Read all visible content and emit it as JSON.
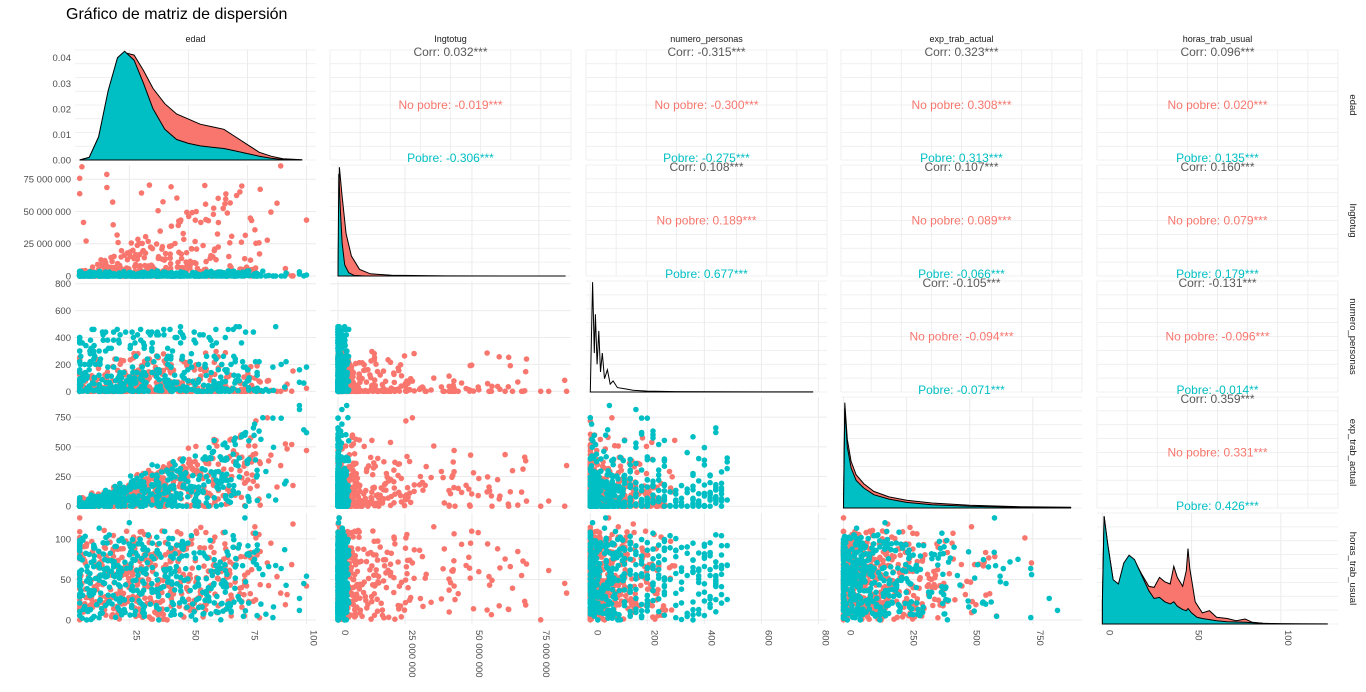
{
  "chart_data": {
    "type": "scatter-matrix",
    "title": "Gráfico de matriz de dispersión",
    "variables": [
      "edad",
      "Ingtotug",
      "numero_personas",
      "exp_trab_actual",
      "horas_trab_usual"
    ],
    "groups": [
      {
        "name": "No pobre",
        "color": "#F8766D"
      },
      {
        "name": "Pobre",
        "color": "#00BFC4"
      }
    ],
    "correlations": [
      {
        "row": 0,
        "col": 1,
        "corr": "Corr: 0.032***",
        "no_pobre": "No pobre: -0.019***",
        "pobre": "Pobre: -0.306***"
      },
      {
        "row": 0,
        "col": 2,
        "corr": "Corr: -0.315***",
        "no_pobre": "No pobre: -0.300***",
        "pobre": "Pobre: -0.275***"
      },
      {
        "row": 0,
        "col": 3,
        "corr": "Corr: 0.323***",
        "no_pobre": "No pobre: 0.308***",
        "pobre": "Pobre: 0.313***"
      },
      {
        "row": 0,
        "col": 4,
        "corr": "Corr: 0.096***",
        "no_pobre": "No pobre: 0.020***",
        "pobre": "Pobre: 0.135***"
      },
      {
        "row": 1,
        "col": 2,
        "corr": "Corr: 0.108***",
        "no_pobre": "No pobre: 0.189***",
        "pobre": "Pobre: 0.677***"
      },
      {
        "row": 1,
        "col": 3,
        "corr": "Corr: 0.107***",
        "no_pobre": "No pobre: 0.089***",
        "pobre": "Pobre: -0.066***"
      },
      {
        "row": 1,
        "col": 4,
        "corr": "Corr: 0.160***",
        "no_pobre": "No pobre: 0.079***",
        "pobre": "Pobre: 0.179***"
      },
      {
        "row": 2,
        "col": 3,
        "corr": "Corr: -0.105***",
        "no_pobre": "No pobre: -0.094***",
        "pobre": "Pobre: -0.071***"
      },
      {
        "row": 2,
        "col": 4,
        "corr": "Corr: -0.131***",
        "no_pobre": "No pobre: -0.096***",
        "pobre": "Pobre: -0.014**"
      },
      {
        "row": 3,
        "col": 4,
        "corr": "Corr: 0.359***",
        "no_pobre": "No pobre: 0.331***",
        "pobre": "Pobre: 0.426***"
      }
    ],
    "y_axes": [
      {
        "ticks": [
          "0.00",
          "0.01",
          "0.02",
          "0.03",
          "0.04"
        ],
        "values": [
          0,
          0.01,
          0.02,
          0.03,
          0.04
        ],
        "ylim": [
          0,
          0.043
        ]
      },
      {
        "ticks": [
          "0",
          "25 000 000",
          "50 000 000",
          "75 000 000"
        ],
        "values": [
          0,
          25000000,
          50000000,
          75000000
        ],
        "ylim": [
          0,
          86000000
        ]
      },
      {
        "ticks": [
          "0",
          "200",
          "400",
          "600",
          "800"
        ],
        "values": [
          0,
          200,
          400,
          600,
          800
        ],
        "ylim": [
          -5,
          820
        ]
      },
      {
        "ticks": [
          "0",
          "250",
          "500",
          "750"
        ],
        "values": [
          0,
          250,
          500,
          750
        ],
        "ylim": [
          -15,
          920
        ]
      },
      {
        "ticks": [
          "0",
          "50",
          "100"
        ],
        "values": [
          0,
          50,
          100
        ],
        "ylim": [
          -5,
          132
        ]
      }
    ],
    "x_axes": [
      {
        "ticks": [
          "25",
          "50",
          "75",
          "100"
        ],
        "values": [
          25,
          50,
          75,
          100
        ],
        "xlim": [
          2,
          104
        ]
      },
      {
        "ticks": [
          "0",
          "25 000 000",
          "50 000 000",
          "75 000 000"
        ],
        "values": [
          0,
          25000000,
          50000000,
          75000000
        ],
        "xlim": [
          -3000000,
          87000000
        ]
      },
      {
        "ticks": [
          "0",
          "200",
          "400",
          "600",
          "800"
        ],
        "values": [
          0,
          200,
          400,
          600,
          800
        ],
        "xlim": [
          -15,
          830
        ]
      },
      {
        "ticks": [
          "0",
          "250",
          "500",
          "750"
        ],
        "values": [
          0,
          250,
          500,
          750
        ],
        "xlim": [
          -10,
          945
        ]
      },
      {
        "ticks": [
          "0",
          "50",
          "100"
        ],
        "values": [
          0,
          50,
          100
        ],
        "xlim": [
          -3,
          132
        ]
      }
    ],
    "densities": [
      {
        "var": "edad",
        "no_pobre": [
          [
            4,
            0
          ],
          [
            8,
            0.001
          ],
          [
            12,
            0.009
          ],
          [
            16,
            0.026
          ],
          [
            20,
            0.038
          ],
          [
            23,
            0.042
          ],
          [
            27,
            0.041
          ],
          [
            31,
            0.035
          ],
          [
            35,
            0.028
          ],
          [
            40,
            0.022
          ],
          [
            45,
            0.018
          ],
          [
            50,
            0.016
          ],
          [
            55,
            0.014
          ],
          [
            60,
            0.013
          ],
          [
            65,
            0.012
          ],
          [
            70,
            0.009
          ],
          [
            75,
            0.006
          ],
          [
            80,
            0.003
          ],
          [
            85,
            0.0015
          ],
          [
            90,
            0.0005
          ],
          [
            98,
            0.0001
          ]
        ],
        "pobre": [
          [
            4,
            0
          ],
          [
            8,
            0.001
          ],
          [
            12,
            0.009
          ],
          [
            16,
            0.027
          ],
          [
            20,
            0.04
          ],
          [
            23,
            0.0425
          ],
          [
            27,
            0.039
          ],
          [
            31,
            0.03
          ],
          [
            35,
            0.02
          ],
          [
            40,
            0.012
          ],
          [
            45,
            0.008
          ],
          [
            50,
            0.0065
          ],
          [
            55,
            0.0055
          ],
          [
            60,
            0.005
          ],
          [
            65,
            0.0045
          ],
          [
            70,
            0.0035
          ],
          [
            75,
            0.0025
          ],
          [
            80,
            0.0015
          ],
          [
            85,
            0.0007
          ],
          [
            90,
            0.0002
          ],
          [
            98,
            0
          ]
        ]
      },
      {
        "var": "Ingtotug",
        "no_pobre": [
          [
            0,
            0
          ],
          [
            500000,
            0.98
          ],
          [
            1500000,
            0.72
          ],
          [
            3000000,
            0.38
          ],
          [
            5000000,
            0.18
          ],
          [
            8000000,
            0.06
          ],
          [
            12000000,
            0.02
          ],
          [
            20000000,
            0.006
          ],
          [
            40000000,
            0.001
          ],
          [
            85000000,
            0
          ]
        ],
        "pobre": [
          [
            0,
            0
          ],
          [
            300000,
            0.92
          ],
          [
            800000,
            0.62
          ],
          [
            1500000,
            0.3
          ],
          [
            2500000,
            0.1
          ],
          [
            4000000,
            0.03
          ],
          [
            6000000,
            0.005
          ],
          [
            10000000,
            0
          ]
        ]
      },
      {
        "var": "numero_personas",
        "overall": [
          [
            0,
            0
          ],
          [
            8,
            0.99
          ],
          [
            14,
            0.35
          ],
          [
            18,
            0.7
          ],
          [
            24,
            0.25
          ],
          [
            30,
            0.55
          ],
          [
            36,
            0.18
          ],
          [
            42,
            0.35
          ],
          [
            50,
            0.12
          ],
          [
            60,
            0.2
          ],
          [
            70,
            0.07
          ],
          [
            80,
            0.1
          ],
          [
            95,
            0.04
          ],
          [
            120,
            0.03
          ],
          [
            150,
            0.015
          ],
          [
            200,
            0.008
          ],
          [
            300,
            0.004
          ],
          [
            450,
            0.002
          ],
          [
            600,
            0.001
          ],
          [
            780,
            0.0005
          ]
        ]
      },
      {
        "var": "exp_trab_actual",
        "no_pobre": [
          [
            0,
            0
          ],
          [
            5,
            0.95
          ],
          [
            15,
            0.62
          ],
          [
            30,
            0.42
          ],
          [
            50,
            0.3
          ],
          [
            80,
            0.22
          ],
          [
            120,
            0.15
          ],
          [
            180,
            0.1
          ],
          [
            250,
            0.07
          ],
          [
            350,
            0.045
          ],
          [
            500,
            0.025
          ],
          [
            700,
            0.012
          ],
          [
            900,
            0.006
          ]
        ],
        "pobre": [
          [
            0,
            0
          ],
          [
            5,
            0.9
          ],
          [
            15,
            0.55
          ],
          [
            30,
            0.36
          ],
          [
            50,
            0.25
          ],
          [
            80,
            0.18
          ],
          [
            120,
            0.12
          ],
          [
            180,
            0.08
          ],
          [
            250,
            0.05
          ],
          [
            350,
            0.03
          ],
          [
            500,
            0.015
          ],
          [
            700,
            0.006
          ],
          [
            900,
            0.002
          ]
        ]
      },
      {
        "var": "horas_trab_usual",
        "no_pobre": [
          [
            0,
            0.2
          ],
          [
            1,
            0.97
          ],
          [
            3,
            0.72
          ],
          [
            6,
            0.4
          ],
          [
            9,
            0.34
          ],
          [
            12,
            0.52
          ],
          [
            15,
            0.6
          ],
          [
            18,
            0.57
          ],
          [
            22,
            0.45
          ],
          [
            26,
            0.34
          ],
          [
            29,
            0.33
          ],
          [
            32,
            0.42
          ],
          [
            35,
            0.38
          ],
          [
            38,
            0.36
          ],
          [
            40,
            0.52
          ],
          [
            42,
            0.42
          ],
          [
            45,
            0.34
          ],
          [
            47,
            0.48
          ],
          [
            48,
            0.68
          ],
          [
            49,
            0.5
          ],
          [
            52,
            0.2
          ],
          [
            56,
            0.1
          ],
          [
            60,
            0.12
          ],
          [
            64,
            0.06
          ],
          [
            70,
            0.05
          ],
          [
            75,
            0.03
          ],
          [
            80,
            0.045
          ],
          [
            84,
            0.015
          ],
          [
            90,
            0.006
          ],
          [
            100,
            0.003
          ],
          [
            112,
            0.001
          ],
          [
            126,
            0.0005
          ]
        ],
        "pobre": [
          [
            0,
            0.2
          ],
          [
            1,
            0.97
          ],
          [
            3,
            0.72
          ],
          [
            6,
            0.4
          ],
          [
            9,
            0.36
          ],
          [
            12,
            0.55
          ],
          [
            15,
            0.62
          ],
          [
            18,
            0.58
          ],
          [
            22,
            0.44
          ],
          [
            26,
            0.3
          ],
          [
            29,
            0.23
          ],
          [
            32,
            0.24
          ],
          [
            35,
            0.2
          ],
          [
            38,
            0.18
          ],
          [
            40,
            0.2
          ],
          [
            42,
            0.16
          ],
          [
            45,
            0.13
          ],
          [
            47,
            0.12
          ],
          [
            48,
            0.14
          ],
          [
            50,
            0.1
          ],
          [
            53,
            0.06
          ],
          [
            56,
            0.05
          ],
          [
            60,
            0.04
          ],
          [
            64,
            0.03
          ],
          [
            70,
            0.02
          ],
          [
            80,
            0.015
          ],
          [
            90,
            0.005
          ],
          [
            100,
            0.002
          ],
          [
            126,
            0
          ]
        ]
      }
    ],
    "scatter_ranges": {
      "edad": [
        4,
        100
      ],
      "Ingtotug": [
        0,
        85000000
      ],
      "numero_personas": [
        0,
        780
      ],
      "exp_trab_actual": [
        0,
        920
      ],
      "horas_trab_usual": [
        0,
        126
      ]
    },
    "background_color": "#ffffff",
    "grid_color": "#ebebeb",
    "strip_color": "#ffffff"
  }
}
